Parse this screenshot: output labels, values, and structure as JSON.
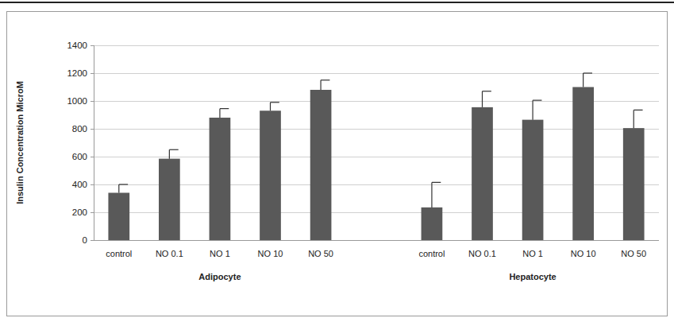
{
  "chart_data": {
    "type": "bar",
    "y_label": "Insulin Concentration MicroM",
    "categories": [
      "control",
      "NO 0.1",
      "NO 1",
      "NO 10",
      "NO 50"
    ],
    "series": [
      {
        "name": "Adipocyte",
        "color": "#595959",
        "values": [
          340,
          585,
          880,
          930,
          1080
        ],
        "errors": [
          60,
          65,
          65,
          60,
          70
        ]
      },
      {
        "name": "Hepatocyte",
        "color": "#595959",
        "values": [
          235,
          955,
          865,
          1100,
          805
        ],
        "errors": [
          180,
          115,
          140,
          100,
          130
        ]
      }
    ],
    "ylim": [
      0,
      1400
    ],
    "yticks": [
      0,
      200,
      400,
      600,
      800,
      1000,
      1200,
      1400
    ],
    "grid": true
  }
}
